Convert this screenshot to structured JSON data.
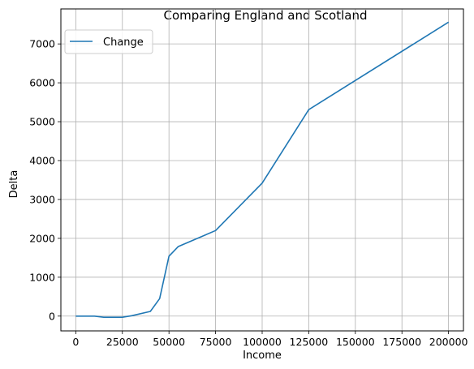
{
  "chart_data": {
    "type": "line",
    "title": "Comparing England and Scotland",
    "xlabel": "Income",
    "ylabel": "Delta",
    "xlim": [
      -8000,
      208000
    ],
    "ylim": [
      -380,
      7900
    ],
    "xticks": [
      0,
      25000,
      50000,
      75000,
      100000,
      125000,
      150000,
      175000,
      200000
    ],
    "yticks": [
      0,
      1000,
      2000,
      3000,
      4000,
      5000,
      6000,
      7000
    ],
    "grid": true,
    "legend_position": "top-left",
    "series": [
      {
        "name": "Change",
        "color": "#1f77b4",
        "x": [
          0,
          10000,
          15000,
          20000,
          25000,
          30000,
          40000,
          45000,
          50000,
          55000,
          75000,
          100000,
          125000,
          200000
        ],
        "y": [
          0,
          0,
          -30,
          -30,
          -30,
          10,
          120,
          450,
          1540,
          1790,
          2200,
          3420,
          5310,
          7560
        ]
      }
    ]
  }
}
